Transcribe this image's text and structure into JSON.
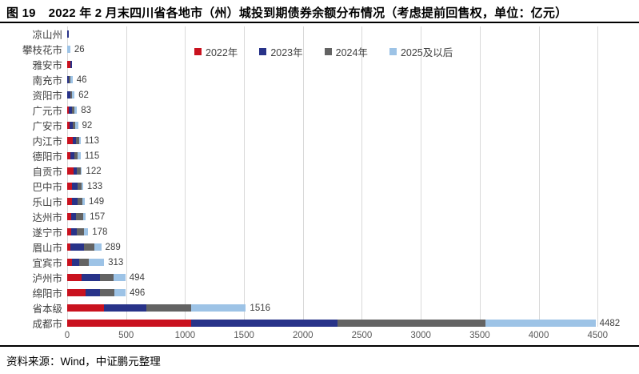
{
  "figure": {
    "number": "图 19",
    "title": "2022 年 2 月末四川省各地市（州）城投到期债券余额分布情况（考虑提前回售权，单位：亿元）",
    "source": "资料来源：Wind，中证鹏元整理"
  },
  "chart_data": {
    "type": "bar",
    "orientation": "horizontal",
    "stacked": true,
    "title": "2022 年 2 月末四川省各地市（州）城投到期债券余额分布情况（考虑提前回售权，单位：亿元）",
    "xlabel": "",
    "ylabel": "",
    "unit": "亿元",
    "legend_position": "top",
    "grid": "vertical",
    "gridline_color": "#d9d9d9",
    "x_ticks": [
      0,
      500,
      1000,
      1500,
      2000,
      2500,
      3000,
      3500,
      4000,
      4500
    ],
    "xlim": [
      0,
      4600
    ],
    "categories": [
      "凉山州",
      "攀枝花市",
      "雅安市",
      "南充市",
      "资阳市",
      "广元市",
      "广安市",
      "内江市",
      "德阳市",
      "自贡市",
      "巴中市",
      "乐山市",
      "达州市",
      "遂宁市",
      "眉山市",
      "宜宾市",
      "泸州市",
      "绵阳市",
      "省本级",
      "成都市"
    ],
    "series": [
      {
        "name": "2022年",
        "color": "#C9121F",
        "values": [
          0,
          0,
          26,
          0,
          0,
          14,
          20,
          45,
          30,
          55,
          40,
          40,
          35,
          35,
          30,
          40,
          120,
          155,
          310,
          1050
        ]
      },
      {
        "name": "2023年",
        "color": "#283389",
        "values": [
          5,
          0,
          14,
          12,
          26,
          28,
          30,
          28,
          28,
          25,
          45,
          45,
          40,
          45,
          115,
          63,
          155,
          120,
          365,
          1240
        ]
      },
      {
        "name": "2024年",
        "color": "#636363",
        "values": [
          0,
          0,
          0,
          16,
          16,
          19,
          20,
          28,
          28,
          35,
          40,
          45,
          60,
          60,
          85,
          78,
          120,
          125,
          375,
          1260
        ]
      },
      {
        "name": "2025及以后",
        "color": "#9DC3E6",
        "values": [
          0,
          26,
          0,
          18,
          20,
          22,
          22,
          12,
          29,
          7,
          8,
          19,
          22,
          38,
          59,
          132,
          99,
          96,
          466,
          932
        ]
      }
    ],
    "totals": [
      5,
      26,
      40,
      46,
      62,
      83,
      92,
      113,
      115,
      122,
      133,
      149,
      157,
      178,
      289,
      313,
      494,
      496,
      1516,
      4482
    ],
    "data_labels": [
      "",
      "26",
      "",
      "46",
      "62",
      "83",
      "92",
      "113",
      "115",
      "122",
      "133",
      "149",
      "157",
      "178",
      "289",
      "313",
      "494",
      "496",
      "1516",
      "4482"
    ]
  }
}
